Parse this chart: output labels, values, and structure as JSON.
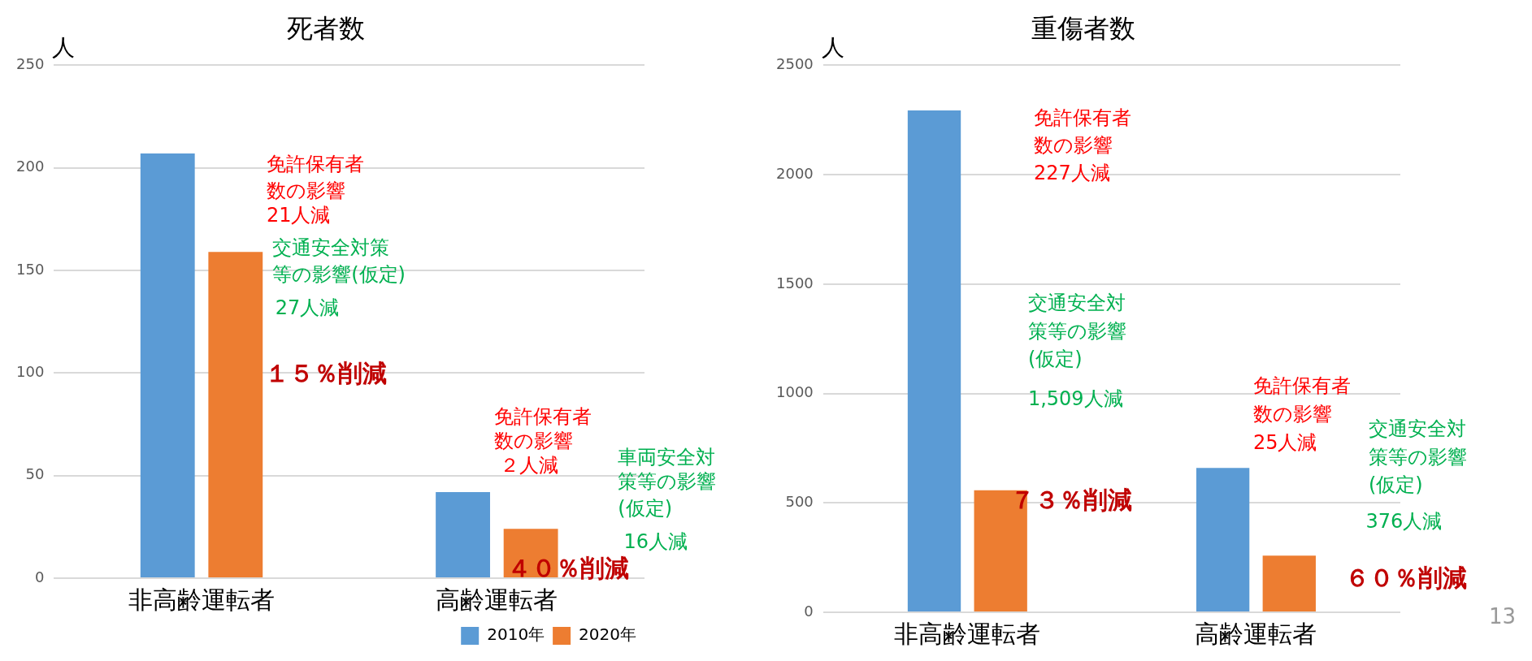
{
  "chart_data": [
    {
      "type": "bar",
      "title": "死者数",
      "ylabel": "人",
      "categories": [
        "非高齢運転者",
        "高齢運転者"
      ],
      "series": [
        {
          "name": "2010年",
          "color": "#5b9bd5",
          "values": [
            207,
            42
          ]
        },
        {
          "name": "2020年",
          "color": "#ed7d31",
          "values": [
            159,
            24
          ]
        }
      ],
      "ylim": [
        0,
        250
      ],
      "yticks": [
        0,
        50,
        100,
        150,
        200,
        250
      ],
      "grid": "y",
      "legend": "bottom right",
      "annotations": [
        "免許保有者",
        "数の影響",
        "21人減",
        "交通安全対策",
        "等の影響(仮定)",
        "27人減",
        "１５％削減",
        "免許保有者",
        "数の影響",
        "２人減",
        "車両安全対",
        "策等の影響",
        "(仮定)",
        "16人減",
        "４０％削減"
      ]
    },
    {
      "type": "bar",
      "title": "重傷者数",
      "ylabel": "人",
      "categories": [
        "非高齢運転者",
        "高齢運転者"
      ],
      "series": [
        {
          "color": "#5b9bd5",
          "values": [
            2294,
            660
          ]
        },
        {
          "color": "#ed7d31",
          "values": [
            558,
            259
          ]
        }
      ],
      "ylim": [
        0,
        2500
      ],
      "yticks": [
        0,
        500,
        1000,
        1500,
        2000,
        2500
      ],
      "grid": "y",
      "annotations": [
        "免許保有者",
        "数の影響",
        "227人減",
        "交通安全対",
        "策等の影響",
        "(仮定)",
        "1,509人減",
        "７３％削減",
        "免許保有者",
        "数の影響",
        "25人減",
        "交通安全対",
        "策等の影響",
        "(仮定)",
        "376人減",
        "６０％削減",
        "13"
      ]
    }
  ]
}
